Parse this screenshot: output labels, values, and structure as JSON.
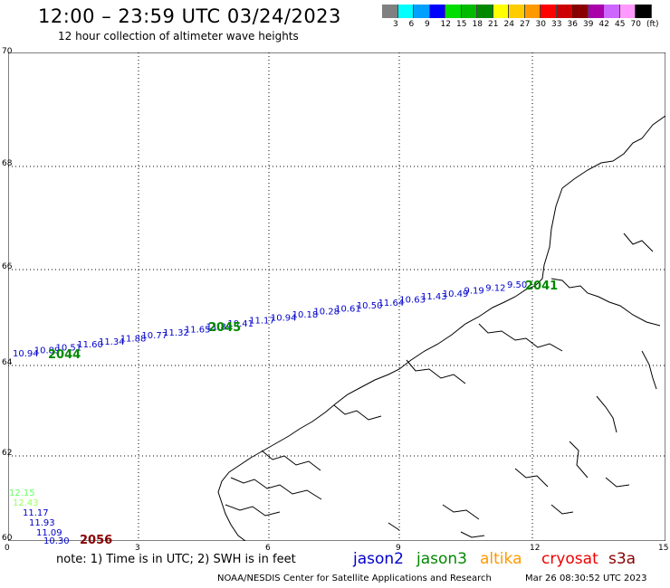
{
  "header": {
    "title": "12:00 – 23:59 UTC 03/24/2023",
    "subtitle": "12 hour collection of altimeter wave heights"
  },
  "colorbar": {
    "colors": [
      "#808080",
      "#00ffff",
      "#00a0ff",
      "#0000ff",
      "#00dd00",
      "#00bb00",
      "#008800",
      "#ffff00",
      "#ffcc00",
      "#ff9900",
      "#ff0000",
      "#cc0000",
      "#880000",
      "#aa00aa",
      "#cc66ff",
      "#ff99ff",
      "#000000"
    ],
    "labels": [
      "3",
      "6",
      "9",
      "12",
      "15",
      "18",
      "21",
      "24",
      "27",
      "30",
      "33",
      "36",
      "39",
      "42",
      "45",
      "70",
      "(ft)"
    ]
  },
  "axes": {
    "y_ticks": [
      "70",
      "68",
      "66",
      "64",
      "62",
      "60"
    ],
    "x_ticks": [
      "0",
      "3",
      "6",
      "9",
      "12",
      "15"
    ]
  },
  "tracks": [
    {
      "id": "track-2044-2045",
      "color": "#0000cc",
      "labels": [
        "10.94",
        "10.89",
        "10.51",
        "11.60",
        "11.34",
        "11.88",
        "10.77",
        "11.32",
        "11.65",
        "11.89",
        "10.41",
        "11.17",
        "10.94",
        "10.18",
        "10.28",
        "10.61",
        "10.50",
        "11.64",
        "10.63",
        "11.43",
        "10.49",
        "9.19",
        "9.12",
        "9.50"
      ],
      "passes": [
        "2044",
        "2045"
      ]
    },
    {
      "id": "track-2041",
      "color": "#00aa00",
      "labels": [],
      "passes": [
        "2041"
      ]
    },
    {
      "id": "track-2056",
      "colors": [
        "#66ff66",
        "#99ff66",
        "#0000cc",
        "#0000cc",
        "#0000cc",
        "#0000cc"
      ],
      "labels": [
        "12.15",
        "12.43",
        "11.17",
        "11.93",
        "11.09",
        "10.30"
      ],
      "passes": [
        "2056"
      ]
    }
  ],
  "pass_colors": {
    "2044": "#008800",
    "2045": "#008800",
    "2041": "#008800",
    "2056": "#880000"
  },
  "footer": {
    "note": "note:  1) Time is in UTC;  2) SWH is in feet",
    "satellites": [
      {
        "name": "jason2",
        "color": "#0000cc"
      },
      {
        "name": "jason3",
        "color": "#008800"
      },
      {
        "name": "altika",
        "color": "#ff9900"
      },
      {
        "name": "cryosat",
        "color": "#ee0000"
      },
      {
        "name": "s3a",
        "color": "#880000"
      }
    ],
    "credit": "NOAA/NESDIS Center for Satellite Applications and Research",
    "timestamp": "Mar 26 08:30:52 UTC 2023"
  }
}
